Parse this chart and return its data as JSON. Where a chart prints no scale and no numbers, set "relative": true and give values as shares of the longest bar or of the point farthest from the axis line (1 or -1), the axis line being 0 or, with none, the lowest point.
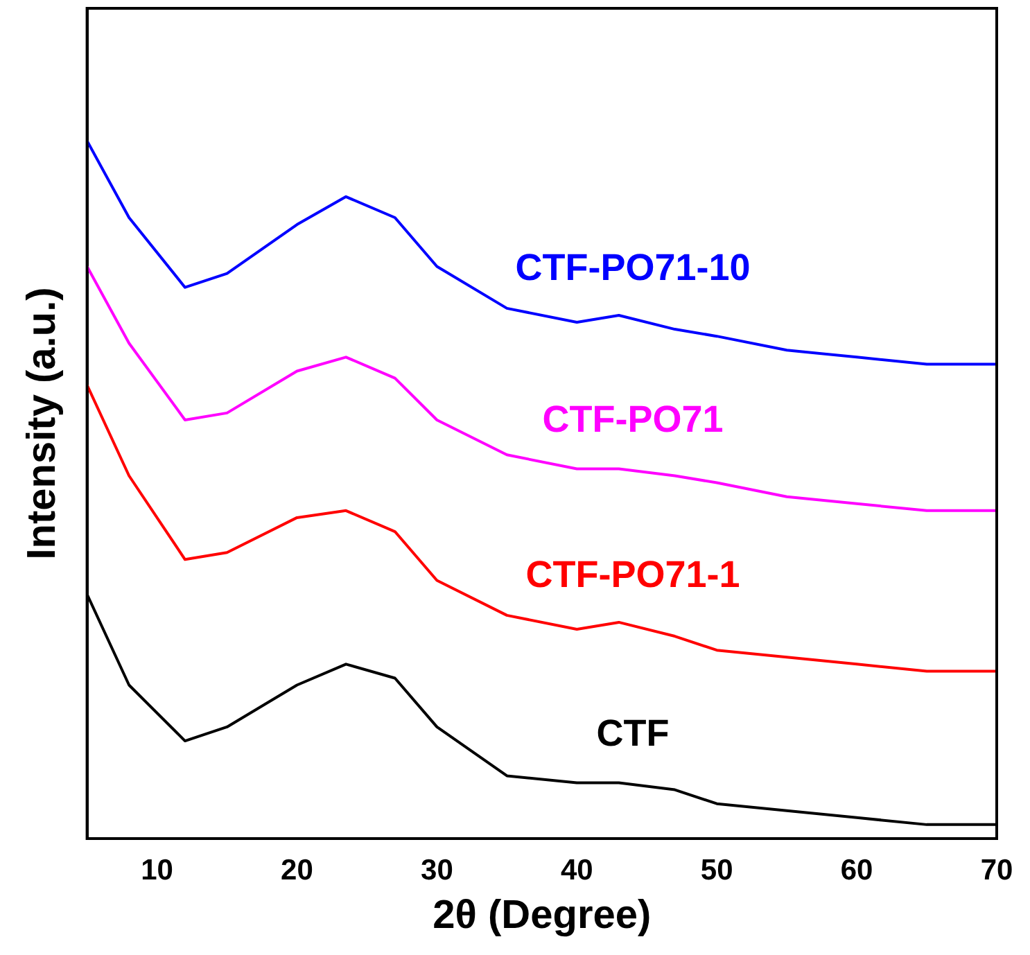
{
  "chart_data": {
    "type": "line",
    "xlabel": "2θ (Degree)",
    "ylabel": "Intensity (a.u.)",
    "relative": true,
    "xlim": [
      5,
      70
    ],
    "xticks": [
      10,
      20,
      30,
      40,
      50,
      60,
      70
    ],
    "grid": false,
    "legend": false,
    "marker": "none",
    "x": [
      5,
      8,
      12,
      15,
      20,
      23.5,
      27,
      30,
      35,
      40,
      43,
      47,
      50,
      55,
      60,
      65,
      70
    ],
    "series": [
      {
        "name": "CTF",
        "color": "#000000",
        "values": [
          0.35,
          0.22,
          0.14,
          0.16,
          0.22,
          0.25,
          0.23,
          0.16,
          0.09,
          0.08,
          0.08,
          0.07,
          0.05,
          0.04,
          0.03,
          0.02,
          0.02
        ]
      },
      {
        "name": "CTF-PO71-1",
        "color": "#ff0000",
        "values": [
          0.65,
          0.52,
          0.4,
          0.41,
          0.46,
          0.47,
          0.44,
          0.37,
          0.32,
          0.3,
          0.31,
          0.29,
          0.27,
          0.26,
          0.25,
          0.24,
          0.24
        ]
      },
      {
        "name": "CTF-PO71",
        "color": "#ff00ff",
        "values": [
          0.82,
          0.71,
          0.6,
          0.61,
          0.67,
          0.69,
          0.66,
          0.6,
          0.55,
          0.53,
          0.53,
          0.52,
          0.51,
          0.49,
          0.48,
          0.47,
          0.47
        ]
      },
      {
        "name": "CTF-PO71-10",
        "color": "#0000ff",
        "values": [
          1,
          0.89,
          0.79,
          0.81,
          0.88,
          0.92,
          0.89,
          0.82,
          0.76,
          0.74,
          0.75,
          0.73,
          0.72,
          0.7,
          0.69,
          0.68,
          0.68
        ]
      }
    ]
  }
}
